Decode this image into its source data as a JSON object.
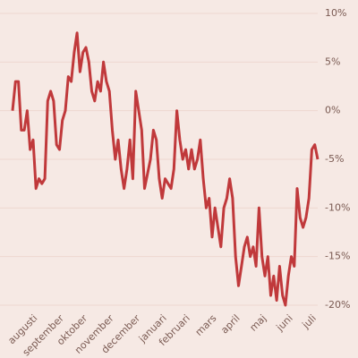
{
  "chart_data": {
    "type": "line",
    "categories": [
      null,
      null,
      null,
      null,
      null,
      null,
      null,
      null,
      "augusti",
      null,
      null,
      null,
      null,
      null,
      null,
      null,
      null,
      "september",
      null,
      null,
      null,
      null,
      null,
      null,
      null,
      "oktober",
      null,
      null,
      null,
      null,
      null,
      null,
      null,
      null,
      "november",
      null,
      null,
      null,
      null,
      null,
      null,
      null,
      null,
      "december",
      null,
      null,
      null,
      null,
      null,
      null,
      null,
      null,
      "januari",
      null,
      null,
      null,
      null,
      null,
      null,
      null,
      "februari",
      null,
      null,
      null,
      null,
      null,
      null,
      null,
      null,
      "mars",
      null,
      null,
      null,
      null,
      null,
      null,
      null,
      "april",
      null,
      null,
      null,
      null,
      null,
      null,
      null,
      null,
      "maj",
      null,
      null,
      null,
      null,
      null,
      null,
      null,
      null,
      "juni",
      null,
      null,
      null,
      null,
      null,
      null,
      null,
      "juli",
      null
    ],
    "series": [
      {
        "color": "#c0393b",
        "values": [
          0,
          3,
          3,
          -2,
          -2,
          0,
          -4,
          -3,
          -8,
          -7,
          -7.5,
          -7,
          1,
          2,
          1,
          -3.5,
          -4,
          -1,
          0,
          3.5,
          3,
          6,
          8,
          4,
          6,
          6.5,
          5,
          2,
          1,
          3,
          2,
          5,
          3,
          2,
          -2,
          -5,
          -3,
          -6,
          -8,
          -6,
          -3,
          -7,
          2,
          0,
          -2,
          -8,
          -6.5,
          -5,
          -2,
          -3,
          -7,
          -9,
          -7,
          -7.5,
          -8,
          -6,
          0,
          -3,
          -5,
          -4,
          -6,
          -4,
          -6,
          -5,
          -3,
          -7,
          -10,
          -9,
          -13,
          -10,
          -12,
          -14,
          -10,
          -9,
          -7,
          -9,
          -15,
          -18,
          -16,
          -14,
          -13,
          -15,
          -14,
          -16,
          -10,
          -15,
          -17,
          -15,
          -19,
          -17,
          -19.5,
          -16,
          -19,
          -20,
          -17,
          -15,
          -16,
          -8,
          -11,
          -12,
          -11,
          -9,
          -4,
          -3.5,
          -5
        ]
      }
    ],
    "ylim": [
      -20,
      10
    ],
    "yticks": [
      {
        "value": 10,
        "label": "10%"
      },
      {
        "value": 5,
        "label": "5%"
      },
      {
        "value": 0,
        "label": "0%"
      },
      {
        "value": -5,
        "label": "-5%"
      },
      {
        "value": -10,
        "label": "-10%"
      },
      {
        "value": -15,
        "label": "-15%"
      },
      {
        "value": -20,
        "label": "-20%"
      }
    ],
    "grid": true
  }
}
